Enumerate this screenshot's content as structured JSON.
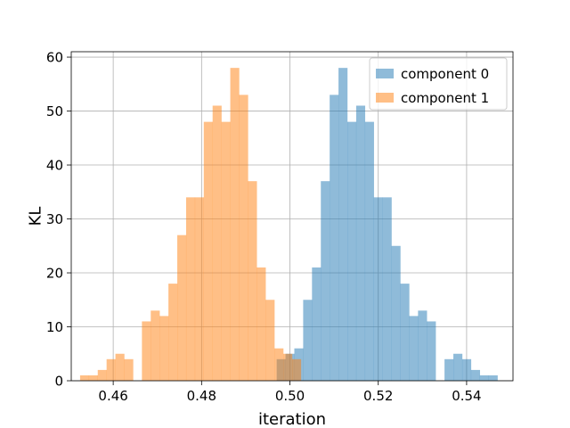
{
  "chart_data": {
    "type": "histogram",
    "xlabel": "iteration",
    "ylabel": "KL",
    "xlim": [
      0.4505,
      0.5505
    ],
    "ylim": [
      0,
      61
    ],
    "xticks": [
      0.46,
      0.48,
      0.5,
      0.52,
      0.54
    ],
    "xtick_labels": [
      "0.46",
      "0.48",
      "0.50",
      "0.52",
      "0.54"
    ],
    "yticks": [
      0,
      10,
      20,
      30,
      40,
      50,
      60
    ],
    "ytick_labels": [
      "0",
      "10",
      "20",
      "30",
      "40",
      "50",
      "60"
    ],
    "grid": true,
    "legend_position": "top-right",
    "bin_width": 0.002,
    "series": [
      {
        "name": "component 0",
        "color": "#1f77b4",
        "alpha": 0.5,
        "bin_start": 0.497,
        "counts": [
          4,
          5,
          6,
          15,
          21,
          37,
          53,
          58,
          48,
          51,
          48,
          34,
          34,
          25,
          18,
          12,
          13,
          11,
          0,
          4,
          5,
          4,
          2,
          1,
          1
        ]
      },
      {
        "name": "component 1",
        "color": "#ff7f0e",
        "alpha": 0.5,
        "bin_start": 0.4525,
        "counts": [
          1,
          1,
          2,
          4,
          5,
          4,
          0,
          11,
          13,
          12,
          18,
          27,
          34,
          34,
          48,
          51,
          48,
          58,
          53,
          37,
          21,
          15,
          6,
          5,
          4
        ]
      }
    ]
  }
}
